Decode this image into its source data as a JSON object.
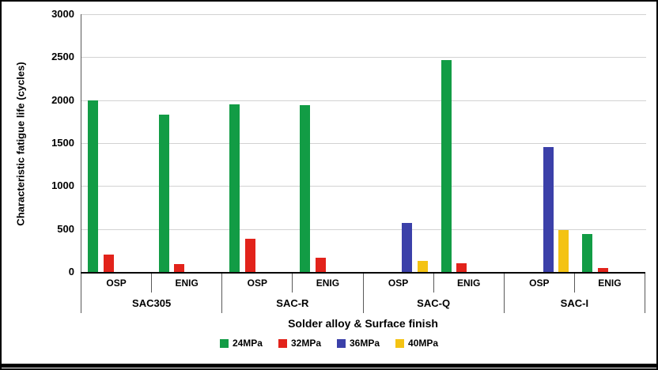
{
  "chart_data": {
    "type": "bar",
    "title": "",
    "ylabel": "Characteristic fatigue life (cycles)",
    "xlabel": "Solder alloy & Surface finish",
    "ylim": [
      0,
      3000
    ],
    "yticks": [
      0,
      500,
      1000,
      1500,
      2000,
      2500,
      3000
    ],
    "grid": true,
    "legend_position": "bottom",
    "series": [
      {
        "name": "24MPa",
        "color": "#129c45"
      },
      {
        "name": "32MPa",
        "color": "#e2231b"
      },
      {
        "name": "36MPa",
        "color": "#3b40a9"
      },
      {
        "name": "40MPa",
        "color": "#f4c313"
      }
    ],
    "groups": [
      {
        "alloy": "SAC305",
        "subgroups": [
          {
            "finish": "OSP",
            "bars": [
              {
                "series": "24MPa",
                "value": 2000
              },
              {
                "series": "32MPa",
                "value": 200
              }
            ]
          },
          {
            "finish": "ENIG",
            "bars": [
              {
                "series": "24MPa",
                "value": 1830
              },
              {
                "series": "32MPa",
                "value": 90
              }
            ]
          }
        ]
      },
      {
        "alloy": "SAC-R",
        "subgroups": [
          {
            "finish": "OSP",
            "bars": [
              {
                "series": "24MPa",
                "value": 1950
              },
              {
                "series": "32MPa",
                "value": 390
              }
            ]
          },
          {
            "finish": "ENIG",
            "bars": [
              {
                "series": "24MPa",
                "value": 1940
              },
              {
                "series": "32MPa",
                "value": 170
              }
            ]
          }
        ]
      },
      {
        "alloy": "SAC-Q",
        "subgroups": [
          {
            "finish": "OSP",
            "bars": [
              {
                "series": "36MPa",
                "value": 575
              },
              {
                "series": "40MPa",
                "value": 130
              }
            ]
          },
          {
            "finish": "ENIG",
            "bars": [
              {
                "series": "24MPa",
                "value": 2470
              },
              {
                "series": "32MPa",
                "value": 100
              }
            ]
          }
        ]
      },
      {
        "alloy": "SAC-I",
        "subgroups": [
          {
            "finish": "OSP",
            "bars": [
              {
                "series": "36MPa",
                "value": 1455
              },
              {
                "series": "40MPa",
                "value": 490
              }
            ]
          },
          {
            "finish": "ENIG",
            "bars": [
              {
                "series": "24MPa",
                "value": 445
              },
              {
                "series": "32MPa",
                "value": 45
              }
            ]
          }
        ]
      }
    ]
  }
}
